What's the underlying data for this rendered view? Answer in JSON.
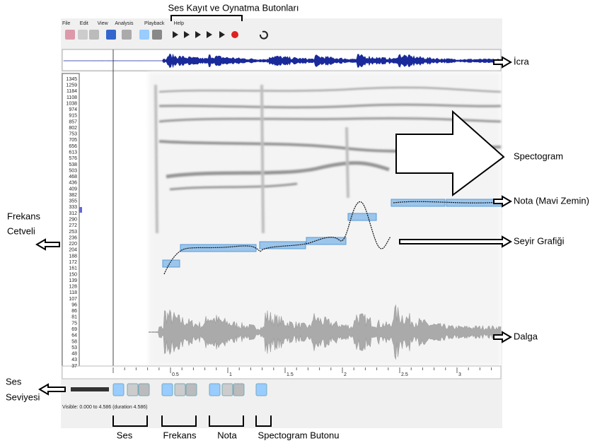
{
  "menu": [
    "File",
    "Edit",
    "View",
    "Analysis",
    "Playback",
    "Help"
  ],
  "annotations": {
    "transport": "Ses Kayıt ve Oynatma Butonları",
    "performance": "İcra",
    "spectrogram": "Spectogram",
    "note": "Nota (Mavi Zemin)",
    "pitch_track": "Seyir Grafiği",
    "wave": "Dalga",
    "freq_ruler": [
      "Frekans",
      "Cetveli"
    ],
    "level": [
      "Ses",
      "Seviyesi"
    ],
    "btn_audio": "Ses",
    "btn_freq": "Frekans",
    "btn_note": "Nota",
    "btn_spec": "Spectogram Butonu"
  },
  "freq_ruler": [
    "1345",
    "1259",
    "1184",
    "1108",
    "1038",
    "974",
    "915",
    "857",
    "802",
    "753",
    "705",
    "656",
    "613",
    "576",
    "538",
    "503",
    "468",
    "436",
    "409",
    "382",
    "355",
    "333",
    "312",
    "290",
    "272",
    "253",
    "236",
    "220",
    "204",
    "188",
    "172",
    "161",
    "150",
    "139",
    "128",
    "118",
    "107",
    "96",
    "86",
    "81",
    "75",
    "69",
    "64",
    "58",
    "53",
    "48",
    "43",
    "37"
  ],
  "time_ruler": {
    "ticks": [
      0.5,
      1,
      1.5,
      2,
      2.5,
      3
    ]
  },
  "status": "Visible: 0.000 to 4.586 (duration 4.586)"
}
